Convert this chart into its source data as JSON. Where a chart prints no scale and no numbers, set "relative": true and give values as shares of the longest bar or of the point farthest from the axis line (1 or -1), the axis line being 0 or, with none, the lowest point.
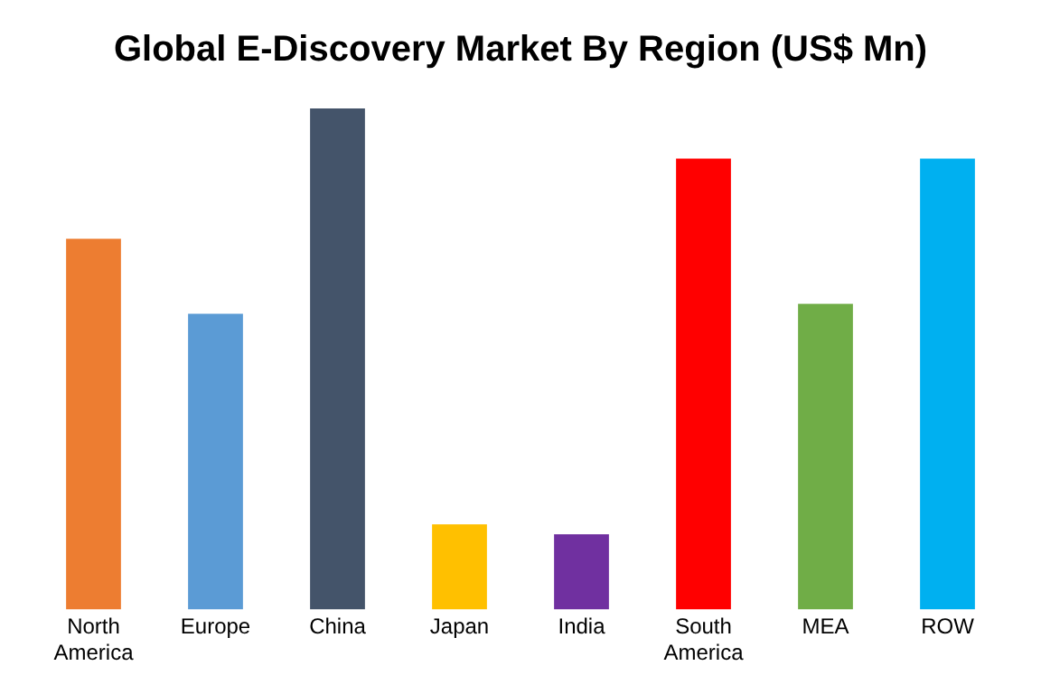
{
  "chart_data": {
    "type": "bar",
    "title": "Global E-Discovery Market By Region (US$ Mn)",
    "relative": true,
    "categories": [
      "North America",
      "Europe",
      "China",
      "Japan",
      "India",
      "South America",
      "MEA",
      "ROW"
    ],
    "values": [
      0.74,
      0.59,
      1,
      0.17,
      0.15,
      0.9,
      0.61,
      0.9
    ],
    "colors": [
      "#ed7d31",
      "#5b9bd5",
      "#44546a",
      "#ffc000",
      "#7030a0",
      "#ff0000",
      "#70ad47",
      "#00b0f0"
    ],
    "grid": false,
    "legend": false
  }
}
